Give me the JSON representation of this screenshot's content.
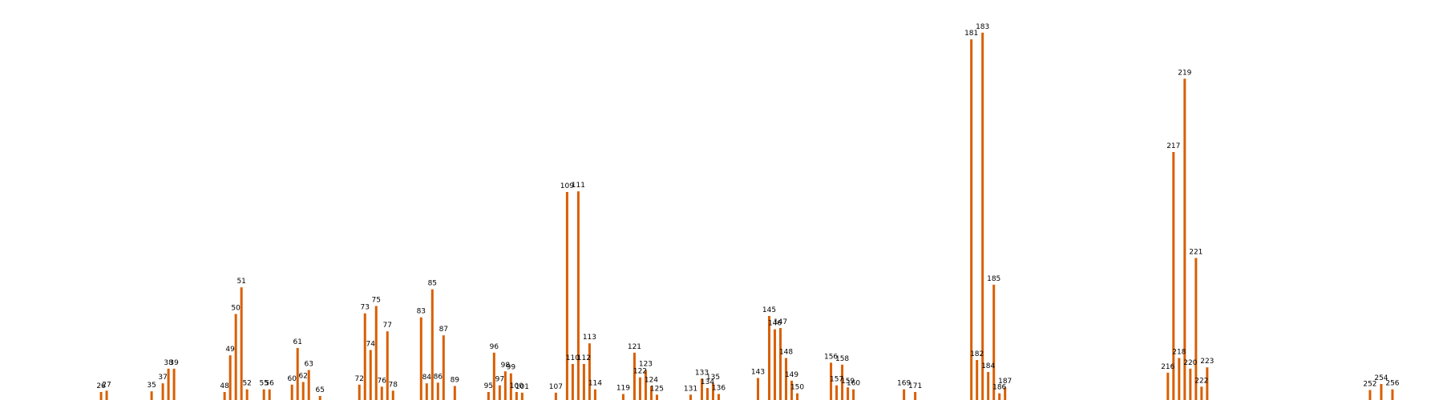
{
  "chart_data": {
    "type": "bar",
    "title": "",
    "xlabel": "",
    "ylabel": "",
    "bar_color": "#d95f02",
    "grid": false,
    "axes_visible": false,
    "xlim": [
      8,
      265
    ],
    "ylim": [
      0,
      600
    ],
    "points": [
      {
        "x": 26,
        "value": 12
      },
      {
        "x": 27,
        "value": 14
      },
      {
        "x": 35,
        "value": 13
      },
      {
        "x": 37,
        "value": 25
      },
      {
        "x": 38,
        "value": 47
      },
      {
        "x": 39,
        "value": 47
      },
      {
        "x": 48,
        "value": 12
      },
      {
        "x": 49,
        "value": 67
      },
      {
        "x": 50,
        "value": 129
      },
      {
        "x": 51,
        "value": 169
      },
      {
        "x": 52,
        "value": 16
      },
      {
        "x": 55,
        "value": 16
      },
      {
        "x": 56,
        "value": 16
      },
      {
        "x": 60,
        "value": 23
      },
      {
        "x": 61,
        "value": 78
      },
      {
        "x": 62,
        "value": 27
      },
      {
        "x": 63,
        "value": 45
      },
      {
        "x": 65,
        "value": 6
      },
      {
        "x": 72,
        "value": 23
      },
      {
        "x": 73,
        "value": 130
      },
      {
        "x": 74,
        "value": 75
      },
      {
        "x": 75,
        "value": 141
      },
      {
        "x": 76,
        "value": 20
      },
      {
        "x": 77,
        "value": 103
      },
      {
        "x": 78,
        "value": 14
      },
      {
        "x": 83,
        "value": 124
      },
      {
        "x": 84,
        "value": 25
      },
      {
        "x": 85,
        "value": 166
      },
      {
        "x": 86,
        "value": 26
      },
      {
        "x": 87,
        "value": 97
      },
      {
        "x": 89,
        "value": 21
      },
      {
        "x": 95,
        "value": 12
      },
      {
        "x": 96,
        "value": 71
      },
      {
        "x": 97,
        "value": 22
      },
      {
        "x": 98,
        "value": 43
      },
      {
        "x": 99,
        "value": 40
      },
      {
        "x": 100,
        "value": 12
      },
      {
        "x": 101,
        "value": 11
      },
      {
        "x": 107,
        "value": 11
      },
      {
        "x": 109,
        "value": 312
      },
      {
        "x": 110,
        "value": 54
      },
      {
        "x": 111,
        "value": 313
      },
      {
        "x": 112,
        "value": 54
      },
      {
        "x": 113,
        "value": 85
      },
      {
        "x": 114,
        "value": 16
      },
      {
        "x": 119,
        "value": 9
      },
      {
        "x": 121,
        "value": 71
      },
      {
        "x": 122,
        "value": 34
      },
      {
        "x": 123,
        "value": 45
      },
      {
        "x": 124,
        "value": 21
      },
      {
        "x": 125,
        "value": 8
      },
      {
        "x": 131,
        "value": 8
      },
      {
        "x": 133,
        "value": 32
      },
      {
        "x": 134,
        "value": 18
      },
      {
        "x": 135,
        "value": 25
      },
      {
        "x": 136,
        "value": 9
      },
      {
        "x": 143,
        "value": 33
      },
      {
        "x": 145,
        "value": 126
      },
      {
        "x": 146,
        "value": 106
      },
      {
        "x": 147,
        "value": 108
      },
      {
        "x": 148,
        "value": 63
      },
      {
        "x": 149,
        "value": 29
      },
      {
        "x": 150,
        "value": 10
      },
      {
        "x": 156,
        "value": 56
      },
      {
        "x": 157,
        "value": 22
      },
      {
        "x": 158,
        "value": 53
      },
      {
        "x": 159,
        "value": 19
      },
      {
        "x": 160,
        "value": 16
      },
      {
        "x": 169,
        "value": 16
      },
      {
        "x": 171,
        "value": 12
      },
      {
        "x": 181,
        "value": 541
      },
      {
        "x": 182,
        "value": 60
      },
      {
        "x": 183,
        "value": 551
      },
      {
        "x": 184,
        "value": 42
      },
      {
        "x": 185,
        "value": 173
      },
      {
        "x": 186,
        "value": 10
      },
      {
        "x": 187,
        "value": 19
      },
      {
        "x": 216,
        "value": 41
      },
      {
        "x": 217,
        "value": 372
      },
      {
        "x": 218,
        "value": 63
      },
      {
        "x": 219,
        "value": 482
      },
      {
        "x": 220,
        "value": 47
      },
      {
        "x": 221,
        "value": 213
      },
      {
        "x": 222,
        "value": 20
      },
      {
        "x": 223,
        "value": 49
      },
      {
        "x": 252,
        "value": 15
      },
      {
        "x": 254,
        "value": 24
      },
      {
        "x": 256,
        "value": 16
      }
    ]
  }
}
